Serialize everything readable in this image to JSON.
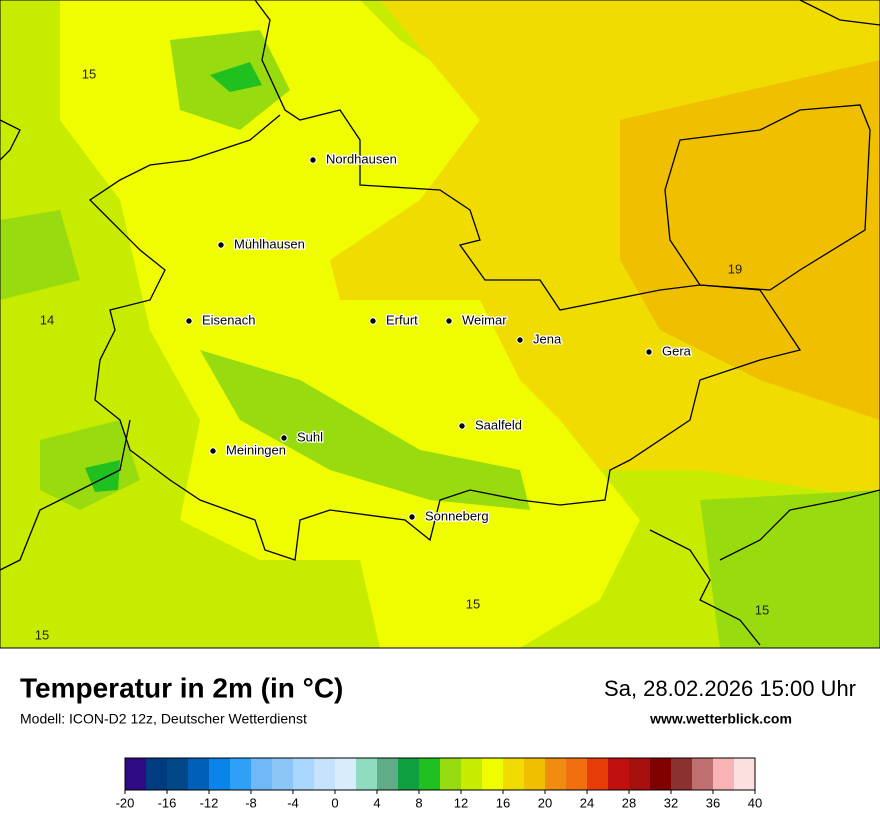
{
  "map": {
    "cities": [
      "Nordhausen",
      "Mühlhausen",
      "Eisenach",
      "Erfurt",
      "Weimar",
      "Jena",
      "Gera",
      "Saalfeld",
      "Suhl",
      "Meiningen",
      "Sonneberg"
    ],
    "point_values": [
      15,
      19,
      14,
      15,
      15,
      15
    ]
  },
  "header": {
    "title": "Temperatur in 2m (in °C)",
    "subtitle": "Modell: ICON-D2 12z, Deutscher Wetterdienst",
    "datetime": "Sa, 28.02.2026 15:00 Uhr",
    "website": "www.wetterblick.com"
  },
  "colorbar": {
    "lim": [
      -20,
      40
    ],
    "ticks": [
      -20,
      -16,
      -12,
      -8,
      -4,
      0,
      4,
      8,
      12,
      16,
      20,
      24,
      28,
      32,
      36,
      40
    ],
    "colors": [
      "#2e0a85",
      "#003c80",
      "#004888",
      "#0060b8",
      "#0a84e8",
      "#2ea0f8",
      "#70b8f8",
      "#8cc6f8",
      "#a8d6fc",
      "#c4e2fc",
      "#d8ecfc",
      "#90dcc0",
      "#60ac88",
      "#10a040",
      "#20c020",
      "#98dc10",
      "#c8ec00",
      "#f0fc00",
      "#f0dc00",
      "#f0c000",
      "#f08c10",
      "#f07010",
      "#e83c08",
      "#c01010",
      "#a81010",
      "#800000",
      "#8c3030",
      "#c07070",
      "#f8b4b4",
      "#fce0e0"
    ]
  }
}
